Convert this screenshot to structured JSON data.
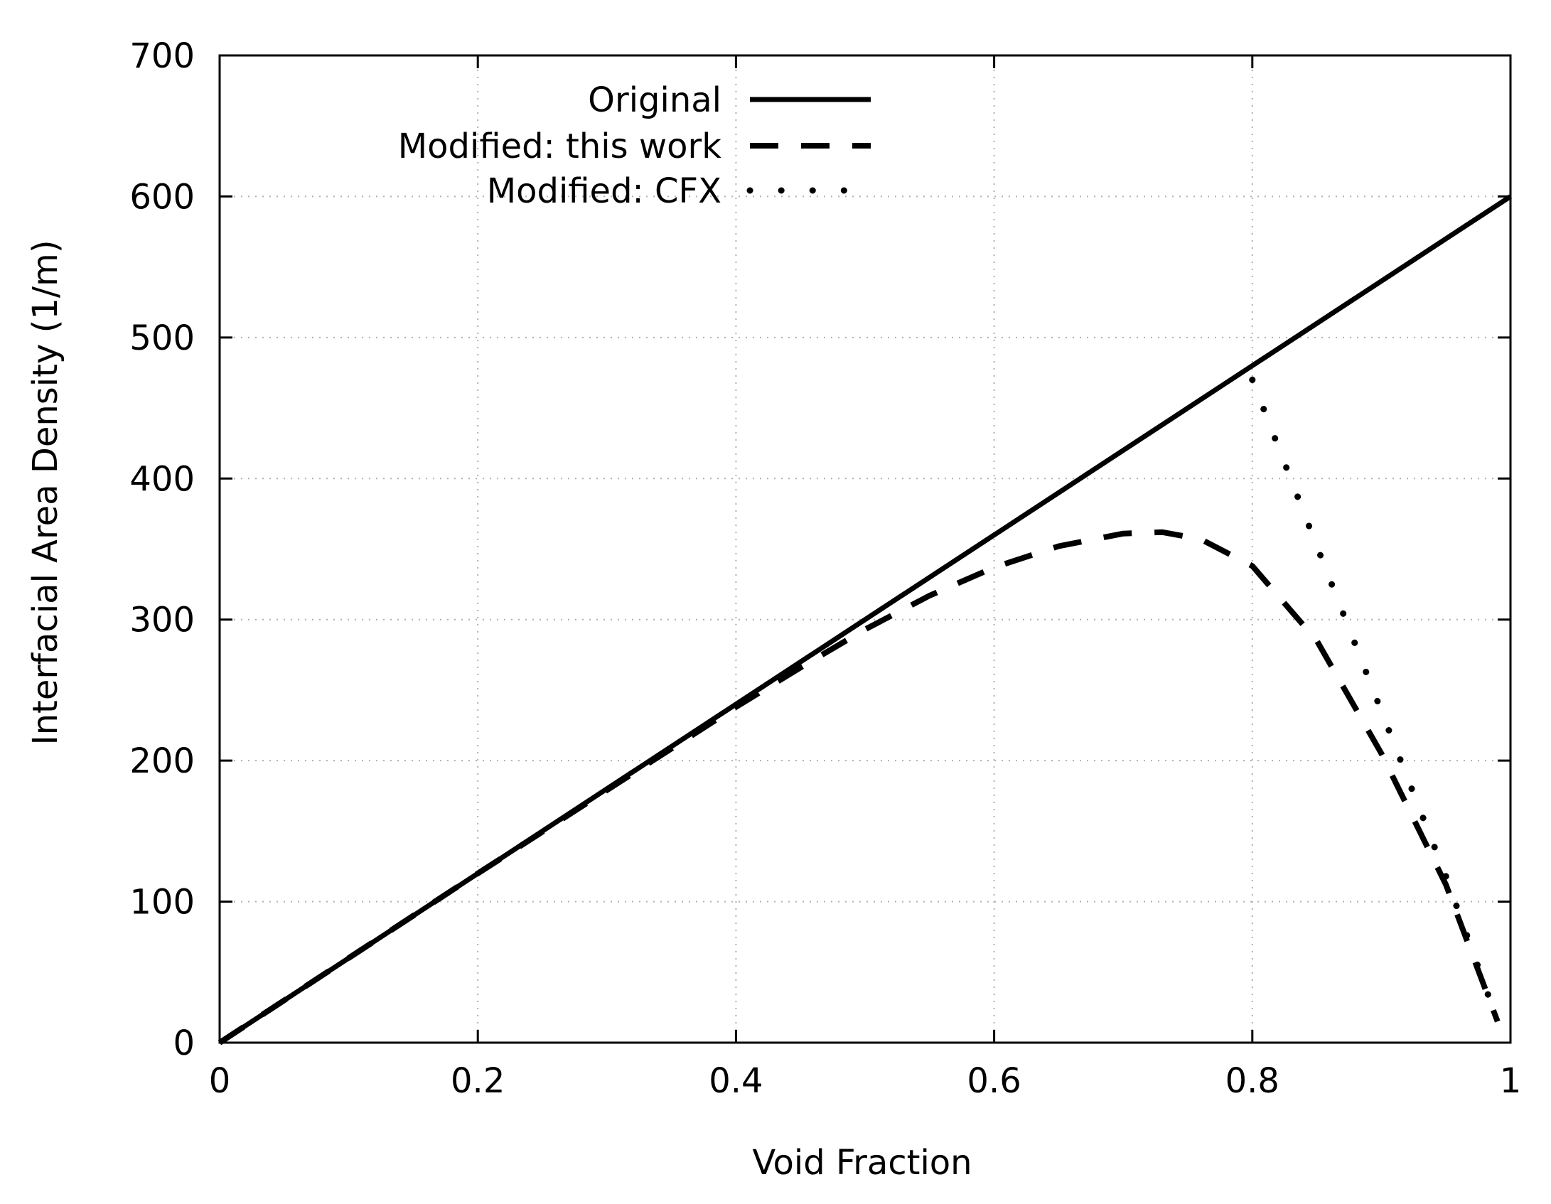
{
  "chart_data": {
    "type": "line",
    "title": "",
    "xlabel": "Void Fraction",
    "ylabel": "Interfacial Area Density (1/m)",
    "xlim": [
      0,
      1
    ],
    "ylim": [
      0,
      700
    ],
    "xticks": [
      0,
      0.2,
      0.4,
      0.6,
      0.8,
      1
    ],
    "xtick_labels": [
      "0",
      "0.2",
      "0.4",
      "0.6",
      "0.8",
      "1"
    ],
    "yticks": [
      0,
      100,
      200,
      300,
      400,
      500,
      600,
      700
    ],
    "ytick_labels": [
      "0",
      "100",
      "200",
      "300",
      "400",
      "500",
      "600",
      "700"
    ],
    "grid": true,
    "legend_position": "top-left",
    "series": [
      {
        "name": "Original",
        "style": "solid",
        "x": [
          0,
          0.2,
          0.4,
          0.6,
          0.8,
          1.0
        ],
        "y": [
          0,
          120,
          240,
          360,
          480,
          600
        ]
      },
      {
        "name": "Modified: this work",
        "style": "dashed",
        "x": [
          0,
          0.1,
          0.2,
          0.3,
          0.4,
          0.45,
          0.5,
          0.55,
          0.6,
          0.65,
          0.7,
          0.73,
          0.76,
          0.8,
          0.85,
          0.9,
          0.95,
          0.99
        ],
        "y": [
          0,
          60,
          120,
          179,
          238,
          266,
          293,
          317,
          337,
          352,
          361,
          362,
          357,
          338,
          285,
          205,
          112,
          15
        ]
      },
      {
        "name": "Modified: CFX",
        "style": "dotted",
        "x": [
          0.8,
          0.85,
          0.9,
          0.95,
          0.99
        ],
        "y": [
          470,
          352,
          235,
          118,
          15
        ]
      }
    ]
  }
}
